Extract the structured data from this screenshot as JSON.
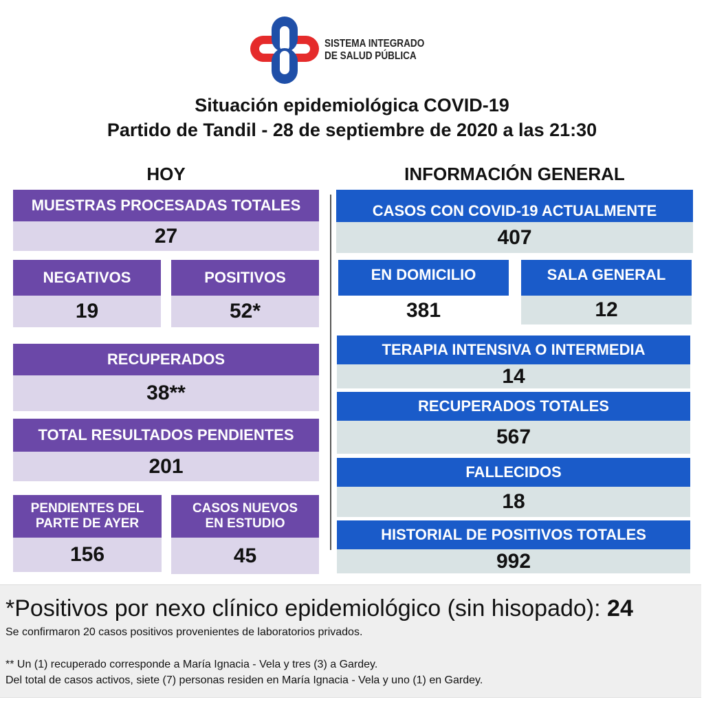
{
  "logo": {
    "line1": "SISTEMA INTEGRADO",
    "line2": "DE SALUD PÚBLICA"
  },
  "title": {
    "line1": "Situación epidemiológica COVID-19",
    "line2": "Partido de Tandil - 28 de septiembre de 2020 a las 21:30"
  },
  "hoy": {
    "heading": "HOY",
    "muestras": {
      "label": "MUESTRAS PROCESADAS TOTALES",
      "value": "27"
    },
    "negativos": {
      "label": "NEGATIVOS",
      "value": "19"
    },
    "positivos": {
      "label": "POSITIVOS",
      "value": "52*"
    },
    "recuperados": {
      "label": "RECUPERADOS",
      "value": "38**"
    },
    "pendientes": {
      "label": "TOTAL RESULTADOS PENDIENTES",
      "value": "201"
    },
    "pendientes_ayer": {
      "label": "PENDIENTES DEL PARTE DE  AYER",
      "value": "156"
    },
    "nuevos_estudio": {
      "label": "CASOS NUEVOS EN ESTUDIO",
      "value": "45"
    }
  },
  "general": {
    "heading": "INFORMACIÓN GENERAL",
    "casos": {
      "label": "CASOS CON COVID-19 ACTUALMENTE",
      "value": "407"
    },
    "domicilio": {
      "label": "EN DOMICILIO",
      "value": "381"
    },
    "sala": {
      "label": "SALA GENERAL",
      "value": "12"
    },
    "terapia": {
      "label": "TERAPIA INTENSIVA O INTERMEDIA",
      "value": "14"
    },
    "recuperados": {
      "label": "RECUPERADOS TOTALES",
      "value": "567"
    },
    "fallecidos": {
      "label": "FALLECIDOS",
      "value": "18"
    },
    "historial": {
      "label": "HISTORIAL DE POSITIVOS TOTALES",
      "value": "992"
    }
  },
  "footer": {
    "nexo_label": "*Positivos por nexo clínico epidemiológico (sin hisopado): ",
    "nexo_value": "24",
    "note1": "Se confirmaron 20 casos positivos provenientes de laboratorios privados.",
    "note2": "** Un (1) recuperado corresponde a María Ignacia - Vela y tres (3) a Gardey.",
    "note3": "Del total de casos activos, siete (7) personas residen en María Ignacia - Vela y uno (1) en Gardey."
  }
}
